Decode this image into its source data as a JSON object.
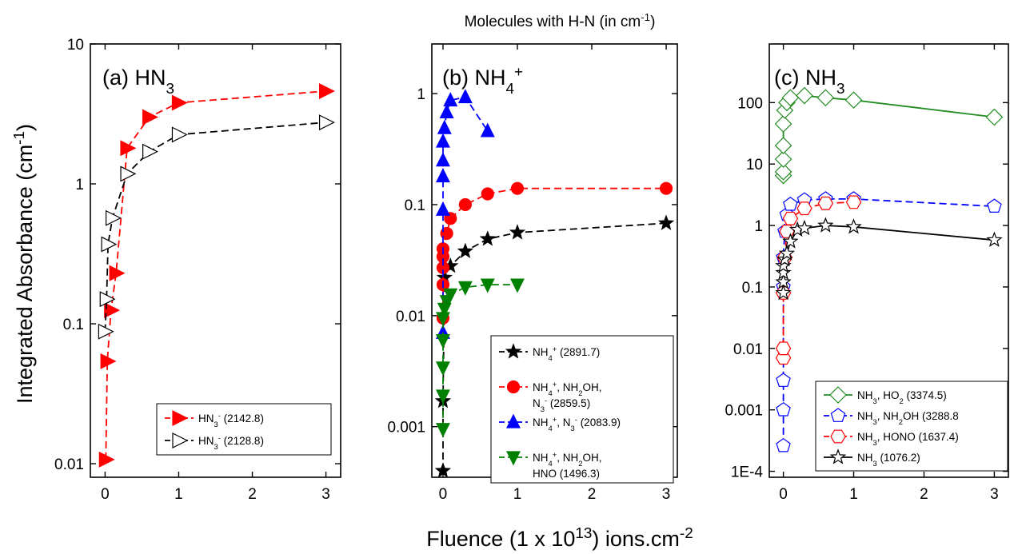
{
  "figure_title": "Molecules with H-N (in cm⁻¹)",
  "y_axis_label": "Integrated Absorbance (cm⁻¹)",
  "x_axis_label": "Fluence (1 x 10¹³) ions.cm⁻²",
  "chart_data": [
    {
      "type": "line",
      "panel_label": "(a) HN₃",
      "y_scale": "log",
      "xlim": [
        -0.2,
        3.2
      ],
      "ylim": [
        0.008,
        10
      ],
      "x_ticks": [
        0,
        1,
        2,
        3
      ],
      "x_tick_labels": [
        "0",
        "1",
        "2",
        "3"
      ],
      "y_ticks": [
        0.01,
        0.1,
        1,
        10
      ],
      "y_tick_labels": [
        "0.01",
        "0.1",
        "1",
        "10"
      ],
      "legend_position": "bottom-right",
      "series": [
        {
          "name": "HN₃⁻ (2142.8)",
          "color": "#ff0000",
          "marker": "triangle-right-filled",
          "line": "dashed",
          "points": [
            [
              0.01,
              0.0107
            ],
            [
              0.03,
              0.054
            ],
            [
              0.08,
              0.125
            ],
            [
              0.15,
              0.23
            ],
            [
              0.3,
              1.8
            ],
            [
              0.6,
              3.0
            ],
            [
              1.0,
              3.8
            ],
            [
              3.0,
              4.6
            ]
          ]
        },
        {
          "name": "HN₃⁻ (2128.8)",
          "color": "#000000",
          "marker": "triangle-right-open",
          "line": "dashed",
          "points": [
            [
              0.0,
              0.088
            ],
            [
              0.02,
              0.15
            ],
            [
              0.04,
              0.37
            ],
            [
              0.1,
              0.57
            ],
            [
              0.3,
              1.18
            ],
            [
              0.6,
              1.7
            ],
            [
              1.0,
              2.25
            ],
            [
              3.0,
              2.75
            ]
          ]
        }
      ]
    },
    {
      "type": "line",
      "panel_label": "(b) NH₄⁺",
      "y_scale": "log",
      "xlim": [
        -0.15,
        3.15
      ],
      "ylim": [
        0.00035,
        2.8
      ],
      "x_ticks": [
        0,
        1,
        2,
        3
      ],
      "x_tick_labels": [
        "0",
        "1",
        "2",
        "3"
      ],
      "y_ticks": [
        0.001,
        0.01,
        0.1,
        1
      ],
      "y_tick_labels": [
        "0.001",
        "0.01",
        "0.1",
        "1"
      ],
      "legend_position": "bottom-right",
      "series": [
        {
          "name": "NH₄⁺ (2891.7)",
          "color": "#000000",
          "marker": "star-filled",
          "line": "dashed",
          "points": [
            [
              0.0,
              0.0004
            ],
            [
              0.0,
              0.0017
            ],
            [
              0.02,
              0.022
            ],
            [
              0.1,
              0.028
            ],
            [
              0.3,
              0.038
            ],
            [
              0.6,
              0.049
            ],
            [
              1.0,
              0.056
            ],
            [
              3.0,
              0.068
            ]
          ]
        },
        {
          "name": "NH₄⁺, NH₂OH, N₃⁻ (2859.5)",
          "color": "#ff0000",
          "marker": "circle-filled",
          "line": "dashed",
          "points": [
            [
              0.0,
              0.0095
            ],
            [
              0.0,
              0.019
            ],
            [
              0.0,
              0.027
            ],
            [
              0.0,
              0.034
            ],
            [
              0.0,
              0.04
            ],
            [
              0.05,
              0.055
            ],
            [
              0.1,
              0.075
            ],
            [
              0.3,
              0.1
            ],
            [
              0.6,
              0.125
            ],
            [
              1.0,
              0.14
            ],
            [
              3.0,
              0.14
            ]
          ]
        },
        {
          "name": "NH₄⁺, N₃⁻ (2083.9)",
          "color": "#0000ff",
          "marker": "triangle-up-filled",
          "line": "dashed",
          "points": [
            [
              0.0,
              0.007
            ],
            [
              0.0,
              0.09
            ],
            [
              0.0,
              0.18
            ],
            [
              0.0,
              0.25
            ],
            [
              0.0,
              0.37
            ],
            [
              0.02,
              0.49
            ],
            [
              0.05,
              0.68
            ],
            [
              0.1,
              0.87
            ],
            [
              0.3,
              0.93
            ],
            [
              0.6,
              0.46
            ]
          ]
        },
        {
          "name": "NH₄⁺, NH₂OH, HNO (1496.3)",
          "color": "#008000",
          "marker": "triangle-down-filled",
          "line": "dashed",
          "points": [
            [
              0.0,
              0.00095
            ],
            [
              0.0,
              0.0019
            ],
            [
              0.0,
              0.0034
            ],
            [
              0.0,
              0.006
            ],
            [
              0.0,
              0.0095
            ],
            [
              0.02,
              0.0115
            ],
            [
              0.05,
              0.0135
            ],
            [
              0.1,
              0.0155
            ],
            [
              0.3,
              0.018
            ],
            [
              0.6,
              0.019
            ],
            [
              1.0,
              0.019
            ]
          ]
        }
      ]
    },
    {
      "type": "line",
      "panel_label": "(c) NH₃",
      "y_scale": "log",
      "xlim": [
        -0.2,
        3.2
      ],
      "ylim": [
        8e-05,
        900
      ],
      "x_ticks": [
        0,
        1,
        2,
        3
      ],
      "x_tick_labels": [
        "0",
        "1",
        "2",
        "3"
      ],
      "y_ticks": [
        0.0001,
        0.001,
        0.01,
        0.1,
        1,
        10,
        100
      ],
      "y_tick_labels": [
        "1E-4",
        "0.001",
        "0.01",
        "0.1",
        "1",
        "10",
        "100"
      ],
      "legend_position": "bottom-right",
      "series": [
        {
          "name": "NH₃, HO₂ (3374.5)",
          "color": "#228b22",
          "marker": "diamond-open",
          "line": "solid",
          "points": [
            [
              0.0,
              6.5
            ],
            [
              0.0,
              7.5
            ],
            [
              0.0,
              12
            ],
            [
              0.0,
              20
            ],
            [
              0.0,
              45
            ],
            [
              0.02,
              75
            ],
            [
              0.05,
              100
            ],
            [
              0.1,
              120
            ],
            [
              0.3,
              130
            ],
            [
              0.6,
              120
            ],
            [
              1.0,
              110
            ],
            [
              3.0,
              58
            ]
          ]
        },
        {
          "name": "NH₃, NH₂OH (3288.8",
          "color": "#0000ff",
          "marker": "pentagon-open",
          "line": "dashed",
          "points": [
            [
              0.0,
              0.00026
            ],
            [
              0.0,
              0.001
            ],
            [
              0.0,
              0.003
            ],
            [
              0.0,
              0.1
            ],
            [
              0.0,
              0.3
            ],
            [
              0.02,
              0.8
            ],
            [
              0.05,
              1.5
            ],
            [
              0.1,
              2.2
            ],
            [
              0.3,
              2.6
            ],
            [
              0.6,
              2.7
            ],
            [
              1.0,
              2.7
            ],
            [
              3.0,
              2.05
            ]
          ]
        },
        {
          "name": "NH₃, HONO (1637.4)",
          "color": "#ff0000",
          "marker": "hexagon-open",
          "line": "dashed",
          "points": [
            [
              0.0,
              0.007
            ],
            [
              0.0,
              0.01
            ],
            [
              0.0,
              0.08
            ],
            [
              0.02,
              0.3
            ],
            [
              0.05,
              0.8
            ],
            [
              0.1,
              1.3
            ],
            [
              0.3,
              1.9
            ],
            [
              0.6,
              2.3
            ],
            [
              1.0,
              2.4
            ]
          ]
        },
        {
          "name": "NH₃ (1076.2)",
          "color": "#000000",
          "marker": "star-open",
          "line": "solid",
          "points": [
            [
              0.0,
              0.08
            ],
            [
              0.0,
              0.12
            ],
            [
              0.0,
              0.17
            ],
            [
              0.0,
              0.22
            ],
            [
              0.02,
              0.28
            ],
            [
              0.05,
              0.35
            ],
            [
              0.1,
              0.55
            ],
            [
              0.2,
              0.85
            ],
            [
              0.3,
              0.9
            ],
            [
              0.6,
              1.0
            ],
            [
              1.0,
              0.95
            ],
            [
              3.0,
              0.58
            ]
          ]
        }
      ]
    }
  ]
}
